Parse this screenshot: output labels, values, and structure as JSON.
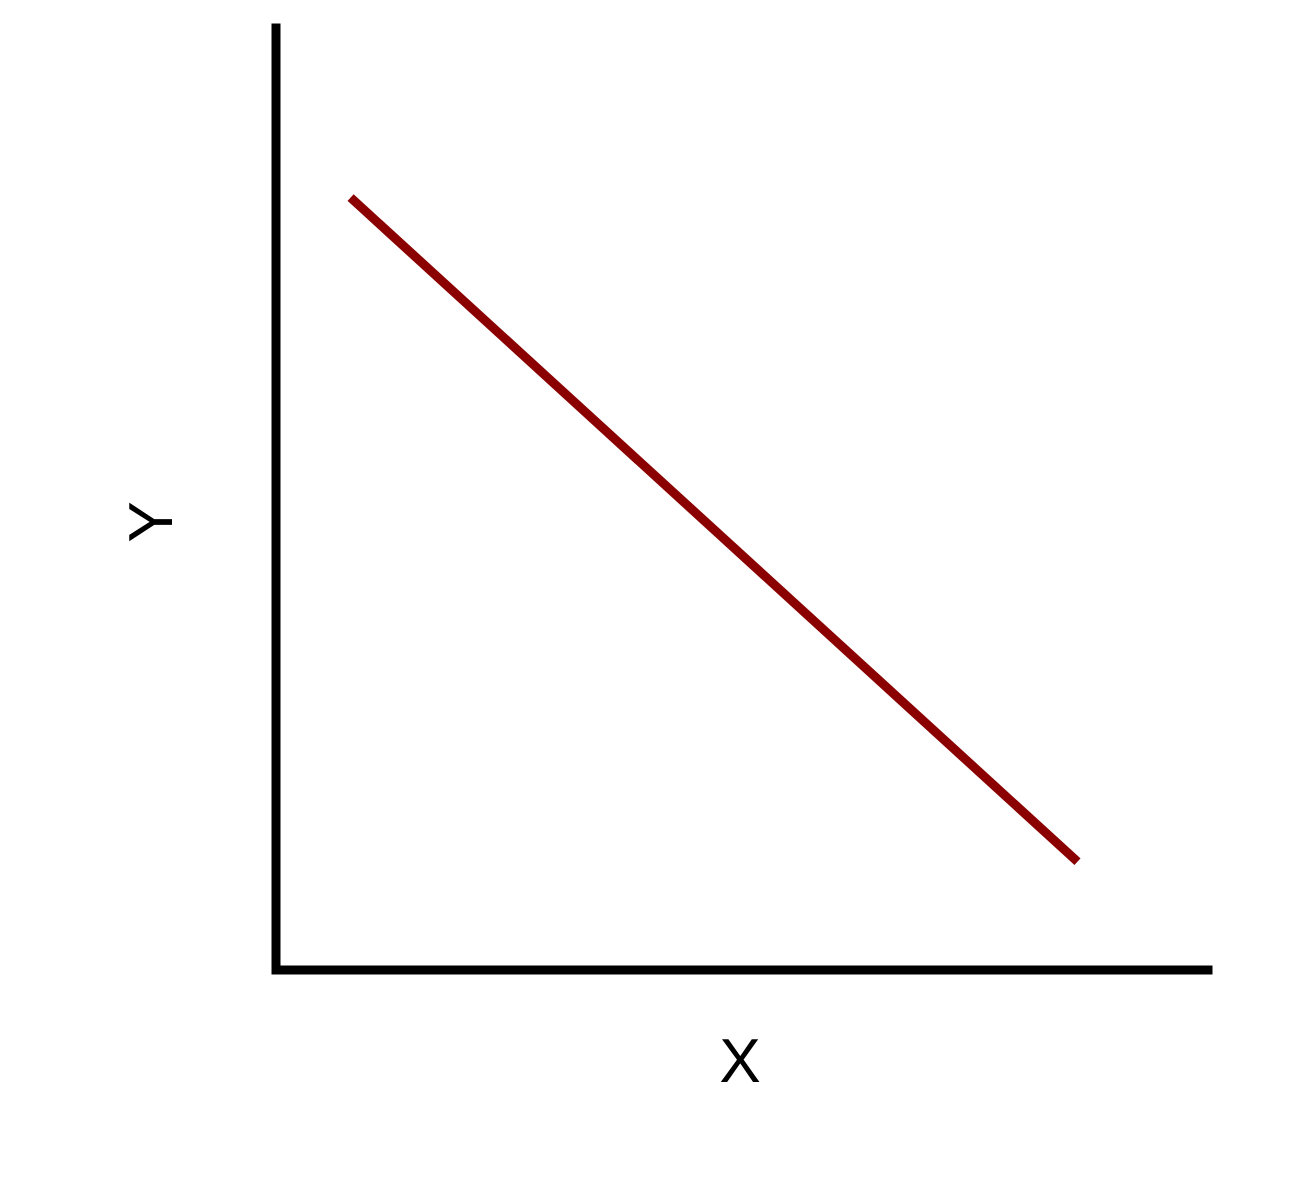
{
  "chart_data": {
    "type": "line",
    "title": "",
    "xlabel": "X",
    "ylabel": "Y",
    "xlim": [
      0,
      10
    ],
    "ylim": [
      0,
      10
    ],
    "grid": false,
    "legend": "none",
    "ticks": false,
    "series": [
      {
        "color": "#8b0000",
        "x": [
          0.8,
          8.6
        ],
        "y": [
          8.2,
          1.15
        ]
      }
    ]
  }
}
